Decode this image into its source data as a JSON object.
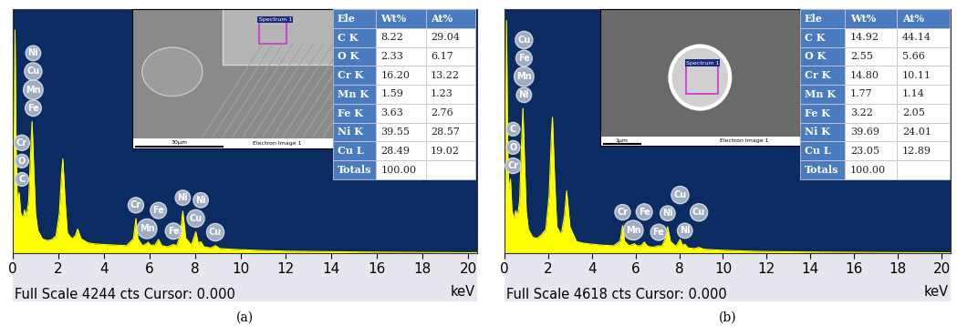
{
  "chart_data": [
    {
      "type": "area",
      "color": "#ffff00",
      "x": [
        0.0,
        0.05,
        0.1,
        0.15,
        0.2,
        0.28,
        0.35,
        0.45,
        0.52,
        0.6,
        0.7,
        0.78,
        0.85,
        0.92,
        1.0,
        1.1,
        1.3,
        1.5,
        1.7,
        1.9,
        2.05,
        2.15,
        2.2,
        2.3,
        2.4,
        2.6,
        2.75,
        2.85,
        3.0,
        3.3,
        3.6,
        4.0,
        4.5,
        5.0,
        5.3,
        5.41,
        5.5,
        5.7,
        5.9,
        5.95,
        6.05,
        6.25,
        6.4,
        6.55,
        6.8,
        7.06,
        7.2,
        7.35,
        7.47,
        7.6,
        7.85,
        8.04,
        8.15,
        8.26,
        8.4,
        8.7,
        8.9,
        9.1,
        9.5,
        10,
        11,
        12,
        14,
        16,
        18,
        20,
        20.4
      ],
      "values": [
        0,
        1500,
        3880,
        1800,
        900,
        1050,
        700,
        600,
        750,
        650,
        900,
        1700,
        2290,
        1500,
        700,
        400,
        250,
        220,
        230,
        300,
        700,
        1400,
        1640,
        900,
        350,
        250,
        300,
        420,
        250,
        180,
        160,
        150,
        140,
        130,
        250,
        600,
        250,
        130,
        170,
        190,
        140,
        140,
        240,
        130,
        110,
        150,
        130,
        300,
        730,
        260,
        140,
        370,
        170,
        200,
        110,
        90,
        130,
        80,
        70,
        60,
        45,
        35,
        25,
        18,
        12,
        8,
        8
      ],
      "xlim": [
        0,
        20.4
      ],
      "xticks": [
        0,
        2,
        4,
        6,
        8,
        10,
        12,
        14,
        16,
        18,
        20
      ],
      "ylim": [
        0,
        4244
      ],
      "tick_labels": "x",
      "x_label": "keV",
      "footer": "Full Scale 4244 cts Cursor: 0.000",
      "caption": "(a)",
      "peak_labels": [
        {
          "energy": 0.4,
          "labels": [
            "Cr",
            "O",
            "C"
          ]
        },
        {
          "energy": 0.9,
          "labels": [
            "Ni",
            "Cu",
            "Mn",
            "Fe"
          ]
        },
        {
          "energy": 5.41,
          "labels": [
            "Cr"
          ]
        },
        {
          "energy": 5.9,
          "labels": [
            "Mn"
          ]
        },
        {
          "energy": 6.4,
          "labels": [
            "Fe"
          ]
        },
        {
          "energy": 7.06,
          "labels": [
            "Fe"
          ]
        },
        {
          "energy": 7.47,
          "labels": [
            "Ni"
          ]
        },
        {
          "energy": 8.04,
          "labels": [
            "Cu"
          ]
        },
        {
          "energy": 8.26,
          "labels": [
            "Ni"
          ]
        },
        {
          "energy": 8.9,
          "labels": [
            "Cu"
          ]
        }
      ],
      "inset_image": {
        "spectrum_label": "Spectrum 1",
        "scale_bar": "30µm",
        "caption": "Electron Image 1"
      },
      "table": {
        "header": [
          "Ele",
          "Wt%",
          "At%"
        ],
        "rows": [
          [
            "C K",
            "8.22",
            "29.04"
          ],
          [
            "O K",
            "2.33",
            "6.17"
          ],
          [
            "Cr K",
            "16.20",
            "13.22"
          ],
          [
            "Mn K",
            "1.59",
            "1.23"
          ],
          [
            "Fe K",
            "3.63",
            "2.76"
          ],
          [
            "Ni K",
            "39.55",
            "28.57"
          ],
          [
            "Cu L",
            "28.49",
            "19.02"
          ],
          [
            "Totals",
            "100.00",
            null
          ]
        ]
      }
    },
    {
      "type": "area",
      "color": "#ffff00",
      "x": [
        0.0,
        0.05,
        0.1,
        0.15,
        0.2,
        0.28,
        0.35,
        0.45,
        0.52,
        0.6,
        0.7,
        0.78,
        0.85,
        0.92,
        1.0,
        1.1,
        1.3,
        1.5,
        1.7,
        1.9,
        2.05,
        2.15,
        2.2,
        2.3,
        2.4,
        2.6,
        2.75,
        2.85,
        3.0,
        3.3,
        3.6,
        4.0,
        4.5,
        5.0,
        5.3,
        5.41,
        5.5,
        5.7,
        5.9,
        5.95,
        6.05,
        6.25,
        6.4,
        6.55,
        6.8,
        7.06,
        7.2,
        7.35,
        7.47,
        7.6,
        7.85,
        8.04,
        8.15,
        8.26,
        8.4,
        8.7,
        8.9,
        9.1,
        9.5,
        10,
        11,
        12,
        14,
        16,
        18,
        20,
        20.4
      ],
      "values": [
        0,
        1700,
        4400,
        2100,
        1200,
        1400,
        800,
        650,
        800,
        700,
        1000,
        2000,
        2740,
        1800,
        800,
        450,
        300,
        280,
        350,
        450,
        1100,
        2200,
        2570,
        1400,
        500,
        350,
        700,
        1180,
        500,
        220,
        190,
        170,
        150,
        140,
        230,
        520,
        230,
        140,
        170,
        180,
        140,
        140,
        210,
        130,
        110,
        140,
        130,
        260,
        500,
        220,
        130,
        260,
        150,
        170,
        100,
        85,
        110,
        75,
        65,
        55,
        40,
        30,
        22,
        16,
        11,
        7,
        7
      ],
      "xlim": [
        0,
        20.4
      ],
      "xticks": [
        0,
        2,
        4,
        6,
        8,
        10,
        12,
        14,
        16,
        18,
        20
      ],
      "ylim": [
        0,
        4618
      ],
      "tick_labels": "x",
      "x_label": "keV",
      "footer": "Full Scale 4618 cts Cursor: 0.000",
      "caption": "(b)",
      "peak_labels": [
        {
          "energy": 0.4,
          "labels": [
            "C",
            "O",
            "Cr"
          ]
        },
        {
          "energy": 0.9,
          "labels": [
            "Cu",
            "Fe",
            "Mn",
            "Ni"
          ]
        },
        {
          "energy": 5.41,
          "labels": [
            "Cr"
          ]
        },
        {
          "energy": 5.9,
          "labels": [
            "Mn"
          ]
        },
        {
          "energy": 6.4,
          "labels": [
            "Fe"
          ]
        },
        {
          "energy": 7.06,
          "labels": [
            "Fe"
          ]
        },
        {
          "energy": 7.47,
          "labels": [
            "Ni"
          ]
        },
        {
          "energy": 8.04,
          "labels": [
            "Cu"
          ]
        },
        {
          "energy": 8.26,
          "labels": [
            "Ni"
          ]
        },
        {
          "energy": 8.9,
          "labels": [
            "Cu"
          ]
        }
      ],
      "inset_image": {
        "spectrum_label": "Spectrum 1",
        "scale_bar": "1µm",
        "caption": "Electron Image 1"
      },
      "table": {
        "header": [
          "Ele",
          "Wt%",
          "At%"
        ],
        "rows": [
          [
            "C K",
            "14.92",
            "44.14"
          ],
          [
            "O K",
            "2.55",
            "5.66"
          ],
          [
            "Cr K",
            "14.80",
            "10.11"
          ],
          [
            "Mn K",
            "1.77",
            "1.14"
          ],
          [
            "Fe K",
            "3.22",
            "2.05"
          ],
          [
            "Ni K",
            "39.69",
            "24.01"
          ],
          [
            "Cu L",
            "23.05",
            "12.89"
          ],
          [
            "Totals",
            "100.00",
            null
          ]
        ]
      }
    }
  ]
}
